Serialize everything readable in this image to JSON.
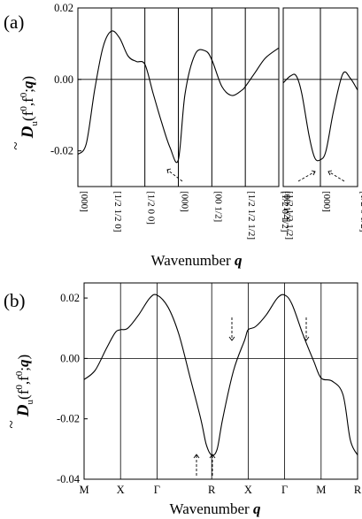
{
  "chart_data": [
    {
      "type": "line",
      "panel_label": "(a)",
      "xlabel_prefix": "Wavenumber",
      "xlabel_symbol": "q",
      "ylabel": {
        "D": "D",
        "sub": "u",
        "args": "(f",
        "sup1": "0",
        "mid": ",f",
        "sup2": "0",
        "tail": ";",
        "q": "q",
        "close": ")"
      },
      "ylim": [
        -0.03,
        0.02
      ],
      "yticks": [
        "0.02",
        "0.00",
        "-0.02"
      ],
      "ytick_values": [
        0.02,
        0.0,
        -0.02
      ],
      "segments": [
        {
          "x_range": [
            0,
            6
          ],
          "x_ticks": [
            0,
            1,
            2,
            3,
            4,
            5,
            6
          ],
          "x": [
            0,
            0.25,
            0.5,
            0.75,
            1.0,
            1.25,
            1.5,
            1.75,
            2.0,
            2.25,
            2.5,
            2.75,
            3.0,
            3.2,
            3.5,
            3.8,
            4.0,
            4.3,
            4.6,
            4.9,
            5.0,
            5.3,
            5.6,
            6.0
          ],
          "values": [
            -0.021,
            -0.018,
            -0.003,
            0.009,
            0.0135,
            0.0115,
            0.0065,
            0.005,
            0.0042,
            -0.004,
            -0.012,
            -0.019,
            -0.0225,
            -0.004,
            0.007,
            0.008,
            0.0055,
            -0.002,
            -0.0045,
            -0.003,
            -0.002,
            0.002,
            0.006,
            0.0088
          ]
        },
        {
          "x_range": [
            0,
            2
          ],
          "x_ticks": [
            1
          ],
          "x": [
            0,
            0.2,
            0.35,
            0.5,
            0.7,
            0.85,
            1.0,
            1.15,
            1.35,
            1.6,
            1.8,
            2.0
          ],
          "values": [
            -0.001,
            0.001,
            0.001,
            -0.004,
            -0.016,
            -0.022,
            -0.0225,
            -0.02,
            -0.009,
            0.0015,
            0.0004,
            -0.003
          ]
        }
      ],
      "xtick_labels_group1": [
        "[000]",
        "[1/2 1/2 0]",
        "[1/2 0 0]",
        "[000]",
        "[00 1/2]",
        "[1/2 1/2 1/2]",
        "[1/2 0 1/2]",
        "[00 1/2]"
      ],
      "xtick_labels_group2": [
        "[1/2 1/2 1/2]",
        "[000]",
        "[1/2 0 1/2]"
      ]
    },
    {
      "type": "line",
      "panel_label": "(b)",
      "xlabel_prefix": "Wavenumber",
      "xlabel_symbol": "q",
      "ylabel": {
        "D": "D",
        "sub": "u",
        "args": "(f",
        "sup1": "0",
        "mid": ",f",
        "sup2": "0",
        "tail": ";",
        "q": "q",
        "close": ")"
      },
      "ylim": [
        -0.04,
        0.025
      ],
      "yticks": [
        "0.02",
        "0.00",
        "-0.02",
        "-0.04"
      ],
      "ytick_values": [
        0.02,
        0.0,
        -0.02,
        -0.04
      ],
      "categories": [
        "M",
        "X",
        "Γ",
        "R",
        "X",
        "Γ",
        "M",
        "R"
      ],
      "category_positions": [
        0,
        1,
        2,
        3.5,
        4.5,
        5.5,
        6.5,
        7.5
      ],
      "vlines_at": [
        1,
        2,
        3.5,
        4.5,
        5.5,
        6.5
      ],
      "x": [
        0,
        0.3,
        0.6,
        0.85,
        1.0,
        1.2,
        1.5,
        1.8,
        2.0,
        2.3,
        2.6,
        2.9,
        3.2,
        3.35,
        3.5,
        3.65,
        3.8,
        4.1,
        4.4,
        4.5,
        4.7,
        5.0,
        5.3,
        5.5,
        5.7,
        6.0,
        6.3,
        6.5,
        6.8,
        7.1,
        7.3,
        7.5
      ],
      "values": [
        -0.007,
        -0.004,
        0.003,
        0.0085,
        0.0095,
        0.01,
        0.0145,
        0.02,
        0.021,
        0.017,
        0.008,
        -0.006,
        -0.02,
        -0.0285,
        -0.032,
        -0.03,
        -0.02,
        -0.004,
        0.006,
        0.0095,
        0.0105,
        0.0145,
        0.02,
        0.021,
        0.018,
        0.008,
        -0.001,
        -0.0065,
        -0.0075,
        -0.012,
        -0.027,
        -0.032
      ]
    }
  ]
}
